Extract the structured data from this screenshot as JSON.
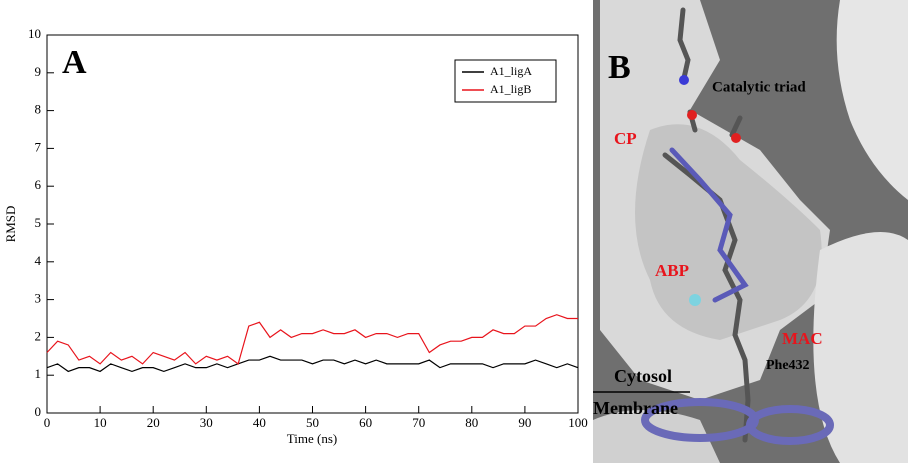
{
  "chart_data": {
    "type": "line",
    "panel_label": "A",
    "x_label": "Time (ns)",
    "y_label": "RMSD",
    "x": [
      0,
      2,
      4,
      6,
      8,
      10,
      12,
      14,
      16,
      18,
      20,
      22,
      24,
      26,
      28,
      30,
      32,
      34,
      36,
      38,
      40,
      42,
      44,
      46,
      48,
      50,
      52,
      54,
      56,
      58,
      60,
      62,
      64,
      66,
      68,
      70,
      72,
      74,
      76,
      78,
      80,
      82,
      84,
      86,
      88,
      90,
      92,
      94,
      96,
      98,
      100
    ],
    "series": [
      {
        "name": "A1_ligA",
        "color": "#000000",
        "values": [
          1.2,
          1.3,
          1.1,
          1.2,
          1.2,
          1.1,
          1.3,
          1.2,
          1.1,
          1.2,
          1.2,
          1.1,
          1.2,
          1.3,
          1.2,
          1.2,
          1.3,
          1.2,
          1.3,
          1.4,
          1.4,
          1.5,
          1.4,
          1.4,
          1.4,
          1.3,
          1.4,
          1.4,
          1.3,
          1.4,
          1.3,
          1.4,
          1.3,
          1.3,
          1.3,
          1.3,
          1.4,
          1.2,
          1.3,
          1.3,
          1.3,
          1.3,
          1.2,
          1.3,
          1.3,
          1.3,
          1.4,
          1.3,
          1.2,
          1.3,
          1.2
        ]
      },
      {
        "name": "A1_ligB",
        "color": "#e8141c",
        "values": [
          1.6,
          1.9,
          1.8,
          1.4,
          1.5,
          1.3,
          1.6,
          1.4,
          1.5,
          1.3,
          1.6,
          1.5,
          1.4,
          1.6,
          1.3,
          1.5,
          1.4,
          1.5,
          1.3,
          2.3,
          2.4,
          2.0,
          2.2,
          2.0,
          2.1,
          2.1,
          2.2,
          2.1,
          2.1,
          2.2,
          2.0,
          2.1,
          2.1,
          2.0,
          2.1,
          2.1,
          1.6,
          1.8,
          1.9,
          1.9,
          2.0,
          2.0,
          2.2,
          2.1,
          2.1,
          2.3,
          2.3,
          2.5,
          2.6,
          2.5,
          2.5
        ]
      }
    ],
    "xlim": [
      0,
      100
    ],
    "xticks": [
      0,
      10,
      20,
      30,
      40,
      50,
      60,
      70,
      80,
      90,
      100
    ],
    "ylim": [
      0,
      10
    ],
    "yticks": [
      0,
      1,
      2,
      3,
      4,
      5,
      6,
      7,
      8,
      9,
      10
    ],
    "legend": "top-right"
  },
  "image_panel": {
    "panel_label": "B",
    "labels": {
      "triad": "Catalytic triad",
      "cp": "CP",
      "abp": "ABP",
      "mac": "MAC",
      "phe": "Phe432",
      "cytosol": "Cytosol",
      "membrane": "Membrane"
    }
  }
}
